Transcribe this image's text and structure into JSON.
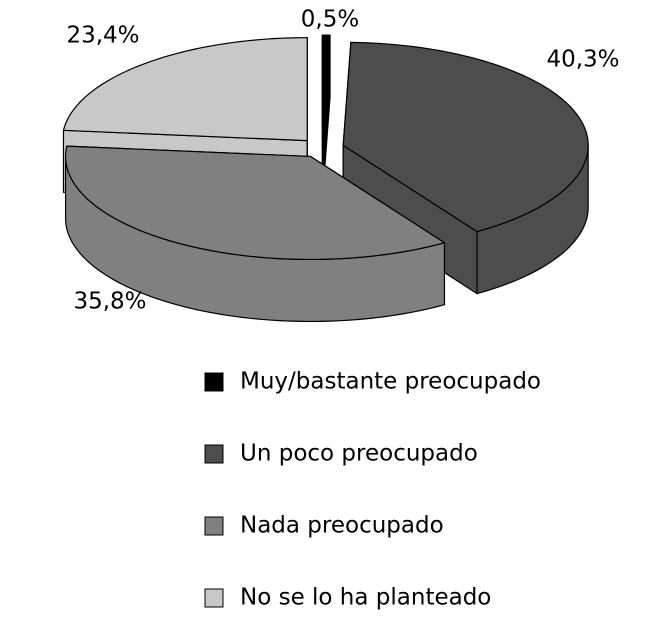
{
  "chart_data": {
    "type": "pie3d",
    "categories": [
      "Muy/bastante preocupado",
      "Un poco preocupado",
      "Nada preocupado",
      "No se lo ha planteado"
    ],
    "values": [
      0.5,
      40.3,
      35.8,
      23.4
    ],
    "value_labels": [
      "0,5%",
      "40,3%",
      "35,8%",
      "23,4%"
    ],
    "colors": [
      "#000000",
      "#4d4d4d",
      "#808080",
      "#c8c8c8"
    ],
    "legend": "bottom"
  }
}
